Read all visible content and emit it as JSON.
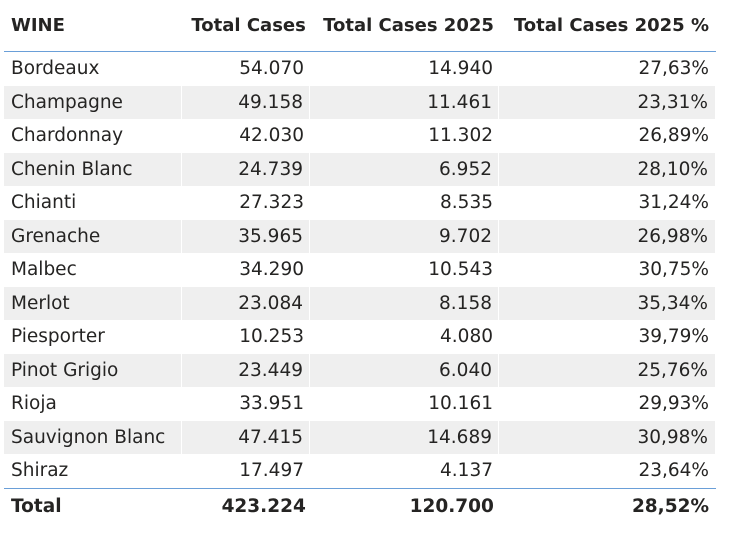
{
  "chart_data": {
    "type": "table",
    "columns": [
      "WINE",
      "Total Cases",
      "Total Cases 2025",
      "Total Cases 2025 %"
    ],
    "rows": [
      [
        "Bordeaux",
        "54.070",
        "14.940",
        "27,63%"
      ],
      [
        "Champagne",
        "49.158",
        "11.461",
        "23,31%"
      ],
      [
        "Chardonnay",
        "42.030",
        "11.302",
        "26,89%"
      ],
      [
        "Chenin Blanc",
        "24.739",
        "6.952",
        "28,10%"
      ],
      [
        "Chianti",
        "27.323",
        "8.535",
        "31,24%"
      ],
      [
        "Grenache",
        "35.965",
        "9.702",
        "26,98%"
      ],
      [
        "Malbec",
        "34.290",
        "10.543",
        "30,75%"
      ],
      [
        "Merlot",
        "23.084",
        "8.158",
        "35,34%"
      ],
      [
        "Piesporter",
        "10.253",
        "4.080",
        "39,79%"
      ],
      [
        "Pinot Grigio",
        "23.449",
        "6.040",
        "25,76%"
      ],
      [
        "Rioja",
        "33.951",
        "10.161",
        "29,93%"
      ],
      [
        "Sauvignon Blanc",
        "47.415",
        "14.689",
        "30,98%"
      ],
      [
        "Shiraz",
        "17.497",
        "4.137",
        "23,64%"
      ]
    ],
    "total": [
      "Total",
      "423.224",
      "120.700",
      "28,52%"
    ]
  },
  "colors": {
    "text": "#252423",
    "band": "#efefef",
    "divider": "#6a9fd8"
  }
}
